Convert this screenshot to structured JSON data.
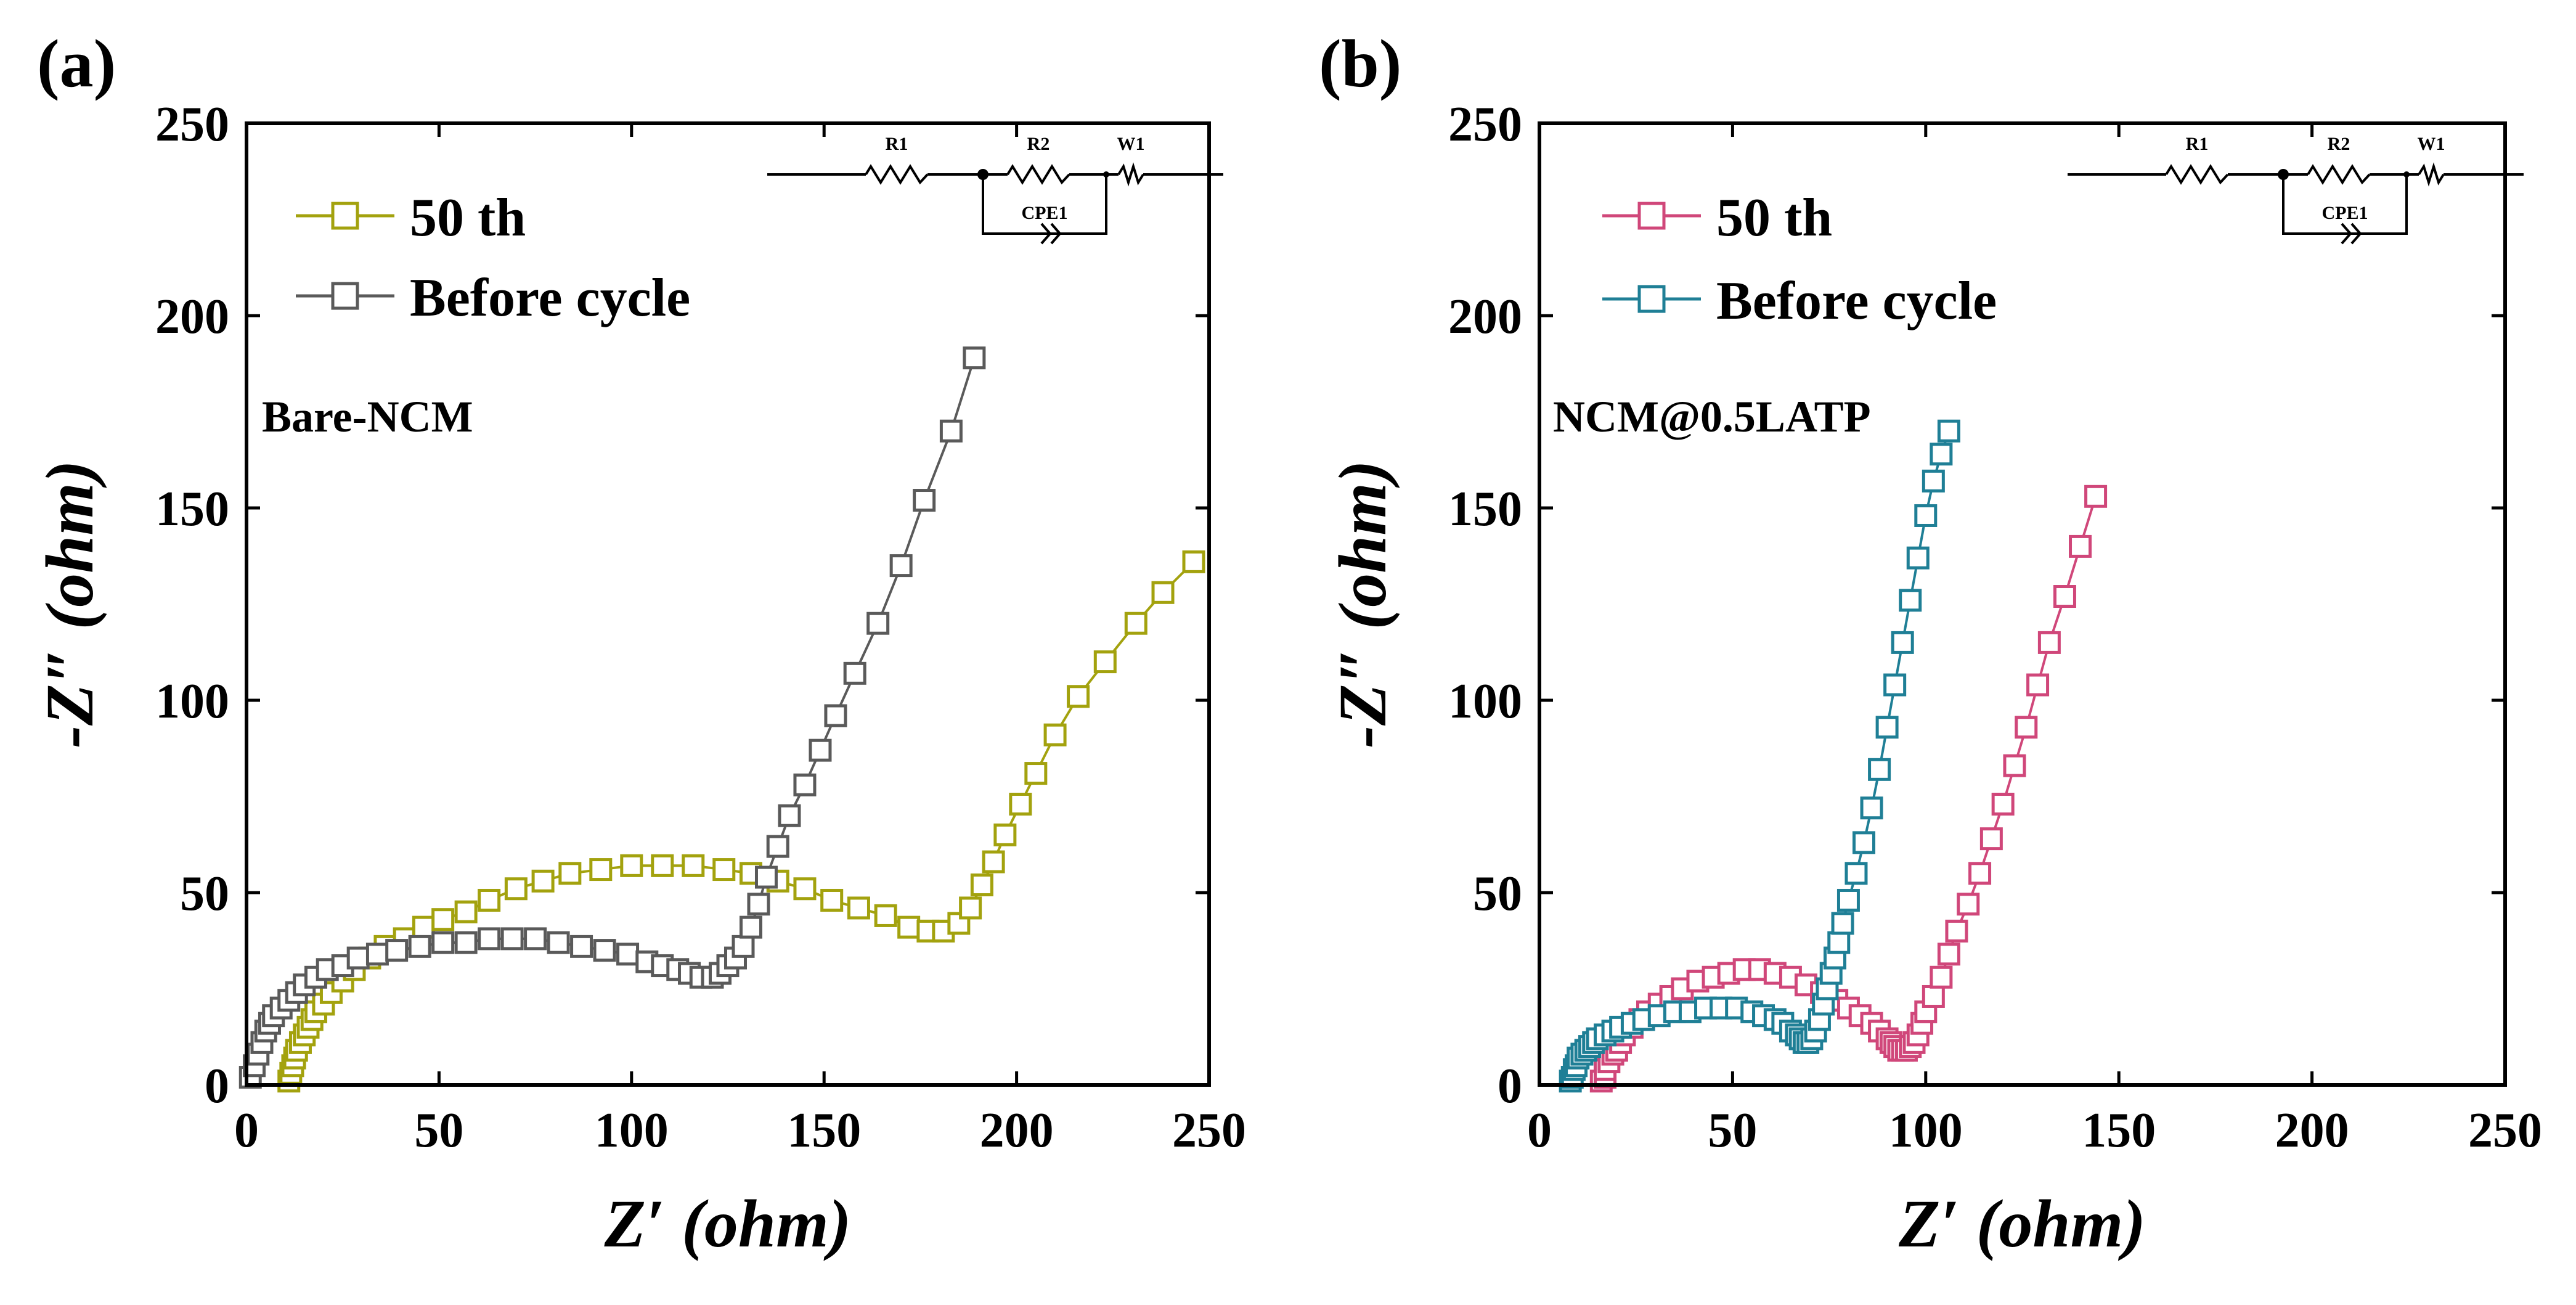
{
  "chart_data": [
    {
      "panel_label": "(a)",
      "type": "scatter",
      "xlabel": "Z′ (ohm)",
      "ylabel": "-Z″ (ohm)",
      "xlim": [
        0,
        250
      ],
      "ylim": [
        0,
        250
      ],
      "xticks": [
        "0",
        "50",
        "100",
        "150",
        "200",
        "250"
      ],
      "yticks": [
        "0",
        "50",
        "100",
        "150",
        "200",
        "250"
      ],
      "sample_label": "Bare-NCM",
      "circuit": {
        "r1": "R1",
        "r2": "R2",
        "w1": "W1",
        "cpe": "CPE1"
      },
      "legend_position": "top-left",
      "series": [
        {
          "name": "50 th",
          "color": "#a3a20e",
          "x": [
            11,
            11.5,
            12,
            12.5,
            13,
            14,
            15,
            16,
            17,
            18,
            20,
            22,
            25,
            28,
            32,
            36,
            41,
            46,
            51,
            57,
            63,
            70,
            77,
            84,
            92,
            100,
            108,
            116,
            124,
            131,
            138,
            145,
            152,
            159,
            166,
            172,
            177,
            181,
            185,
            188,
            191,
            194,
            197,
            201,
            205,
            210,
            216,
            223,
            231,
            238,
            246
          ],
          "y": [
            1,
            3,
            5,
            7,
            9,
            11,
            13,
            15,
            17,
            19,
            21,
            24,
            27,
            30,
            33,
            36,
            38,
            41,
            43,
            45,
            48,
            51,
            53,
            55,
            56,
            57,
            57,
            57,
            56,
            55,
            53,
            51,
            48,
            46,
            44,
            41,
            40,
            40,
            42,
            46,
            52,
            58,
            65,
            73,
            81,
            91,
            101,
            110,
            120,
            128,
            136
          ]
        },
        {
          "name": "Before cycle",
          "color": "#5a5a5a",
          "x": [
            1,
            2,
            3,
            4,
            5,
            6,
            7,
            9,
            11,
            13,
            15,
            18,
            21,
            25,
            29,
            34,
            39,
            45,
            51,
            57,
            63,
            69,
            75,
            81,
            87,
            93,
            99,
            104,
            108,
            112,
            115,
            118,
            121,
            123,
            125,
            127,
            129,
            131,
            133,
            135,
            138,
            141,
            145,
            149,
            153,
            158,
            164,
            170,
            176,
            183,
            189
          ],
          "y": [
            2,
            5,
            8,
            11,
            14,
            16,
            18,
            20,
            22,
            24,
            26,
            28,
            30,
            31,
            33,
            34,
            35,
            36,
            37,
            37,
            38,
            38,
            38,
            37,
            36,
            35,
            34,
            32,
            31,
            30,
            29,
            28,
            28,
            29,
            31,
            33,
            36,
            41,
            47,
            54,
            62,
            70,
            78,
            87,
            96,
            107,
            120,
            135,
            152,
            170,
            189
          ]
        }
      ]
    },
    {
      "panel_label": "(b)",
      "type": "scatter",
      "xlabel": "Z′ (ohm)",
      "ylabel": "-Z″ (ohm)",
      "xlim": [
        0,
        250
      ],
      "ylim": [
        0,
        250
      ],
      "xticks": [
        "0",
        "50",
        "100",
        "150",
        "200",
        "250"
      ],
      "yticks": [
        "0",
        "50",
        "100",
        "150",
        "200",
        "250"
      ],
      "sample_label": "NCM@0.5LATP",
      "circuit": {
        "r1": "R1",
        "r2": "R2",
        "w1": "W1",
        "cpe": "CPE1"
      },
      "legend_position": "top-left",
      "series": [
        {
          "name": "50 th",
          "color": "#d0477a",
          "x": [
            16,
            17,
            17,
            18,
            19,
            20,
            21,
            22,
            24,
            26,
            28,
            31,
            34,
            37,
            41,
            45,
            49,
            53,
            57,
            61,
            65,
            69,
            73,
            77,
            80,
            83,
            86,
            88,
            90,
            91,
            92,
            93,
            94,
            95,
            96,
            97,
            98,
            99,
            100,
            102,
            104,
            106,
            108,
            111,
            114,
            117,
            120,
            123,
            126,
            129,
            132,
            136,
            140,
            144
          ],
          "y": [
            1,
            2,
            4,
            6,
            8,
            9,
            11,
            13,
            15,
            17,
            19,
            21,
            23,
            25,
            27,
            28,
            29,
            30,
            30,
            29,
            28,
            26,
            24,
            22,
            20,
            18,
            16,
            14,
            12,
            11,
            10,
            9,
            9,
            9,
            10,
            11,
            13,
            16,
            19,
            23,
            28,
            34,
            40,
            47,
            55,
            64,
            73,
            83,
            93,
            104,
            115,
            127,
            140,
            153
          ]
        },
        {
          "name": "Before cycle",
          "color": "#1f7f96",
          "x": [
            8,
            8.5,
            9,
            9.5,
            10,
            11,
            12,
            13,
            14,
            15,
            17,
            19,
            21,
            24,
            27,
            31,
            35,
            39,
            43,
            47,
            51,
            55,
            58,
            61,
            63,
            65,
            66.5,
            67.5,
            68.5,
            69.5,
            70.5,
            71.5,
            72.5,
            73.5,
            74.5,
            75.5,
            76.5,
            77.5,
            78.5,
            80,
            82,
            84,
            86,
            88,
            90,
            92,
            94,
            96,
            98,
            100,
            102,
            104,
            106
          ],
          "y": [
            1,
            2,
            4,
            5,
            7,
            8,
            9,
            10,
            11,
            12,
            13,
            14,
            15,
            16,
            17,
            18,
            19,
            19,
            20,
            20,
            20,
            19,
            18,
            17,
            16,
            14,
            13,
            12,
            11,
            11,
            12,
            14,
            17,
            21,
            25,
            29,
            33,
            37,
            42,
            48,
            55,
            63,
            72,
            82,
            93,
            104,
            115,
            126,
            137,
            148,
            157,
            164,
            170
          ]
        }
      ]
    }
  ]
}
